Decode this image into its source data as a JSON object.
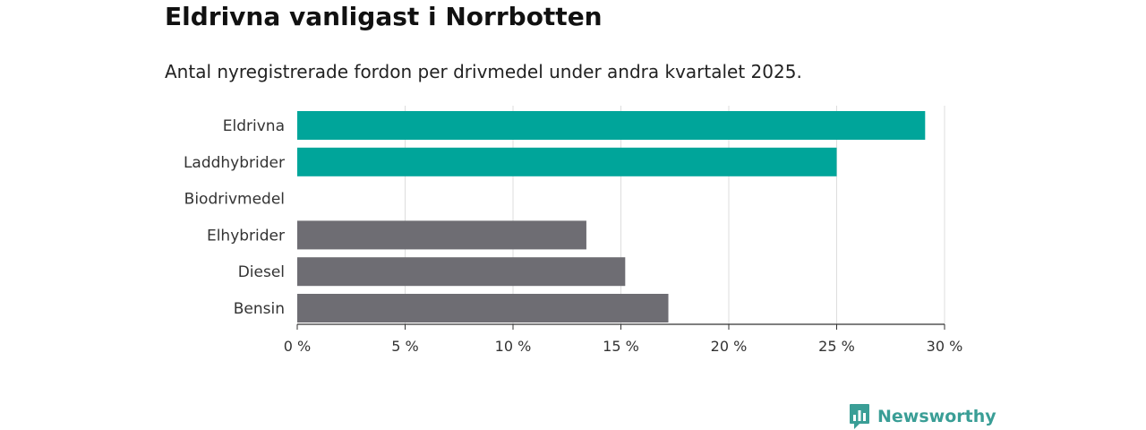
{
  "title": "Eldrivna vanligast i Norrbotten",
  "subtitle": "Antal nyregistrerade fordon per drivmedel under andra kvartalet 2025.",
  "brand": {
    "name": "Newsworthy",
    "icon": "newsworthy-logo-icon"
  },
  "colors": {
    "highlight": "#00a59a",
    "default": "#6e6d73",
    "grid": "#dddddd",
    "axis": "#333333"
  },
  "chart_data": {
    "type": "bar",
    "orientation": "horizontal",
    "categories": [
      "Eldrivna",
      "Laddhybrider",
      "Biodrivmedel",
      "Elhybrider",
      "Diesel",
      "Bensin"
    ],
    "values": [
      29.1,
      25.0,
      0,
      13.4,
      15.2,
      17.2
    ],
    "highlighted": [
      true,
      true,
      false,
      false,
      false,
      false
    ],
    "xlim": [
      0,
      30
    ],
    "xticks": [
      0,
      5,
      10,
      15,
      20,
      25,
      30
    ],
    "xtick_labels": [
      "0 %",
      "5 %",
      "10 %",
      "15 %",
      "20 %",
      "25 %",
      "30 %"
    ],
    "grid": true,
    "legend": "none"
  }
}
